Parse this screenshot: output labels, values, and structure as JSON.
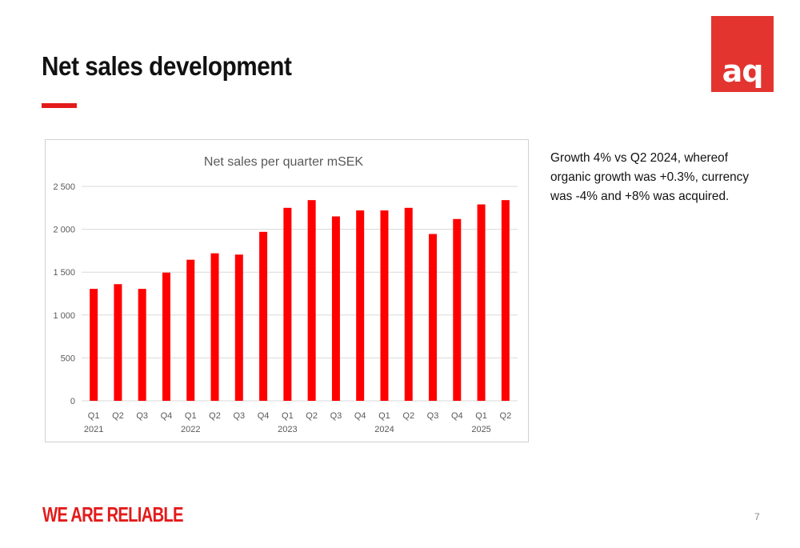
{
  "slide": {
    "title": "Net sales development",
    "commentary": "Growth 4% vs Q2 2024, whereof organic growth was +0.3%, currency was -4% and +8% was acquired.",
    "slogan": "WE ARE RELIABLE",
    "page_number": "7",
    "logo_text": "aq"
  },
  "colors": {
    "accent": "#e31b1b",
    "logo": "#e3342f",
    "bar": "#ff0000",
    "grid": "#d9d9d9"
  },
  "chart_data": {
    "type": "bar",
    "title": "Net sales per quarter mSEK",
    "xlabel": "",
    "ylabel": "",
    "categories": [
      "Q1",
      "Q2",
      "Q3",
      "Q4",
      "Q1",
      "Q2",
      "Q3",
      "Q4",
      "Q1",
      "Q2",
      "Q3",
      "Q4",
      "Q1",
      "Q2",
      "Q3",
      "Q4",
      "Q1",
      "Q2"
    ],
    "groups": [
      {
        "label": "2021"
      },
      {
        "label": "2022"
      },
      {
        "label": "2023"
      },
      {
        "label": "2024"
      },
      {
        "label": "2025"
      }
    ],
    "values": [
      1305,
      1360,
      1305,
      1495,
      1645,
      1720,
      1705,
      1970,
      2250,
      2340,
      2150,
      2220,
      2220,
      2250,
      1945,
      2120,
      2290,
      2340
    ],
    "ylim": [
      0,
      2500
    ],
    "yticks": [
      0,
      500,
      1000,
      1500,
      2000,
      2500
    ],
    "ytick_labels": [
      "0",
      "500",
      "1 000",
      "1 500",
      "2 000",
      "2 500"
    ],
    "grid": true,
    "legend": "none"
  }
}
